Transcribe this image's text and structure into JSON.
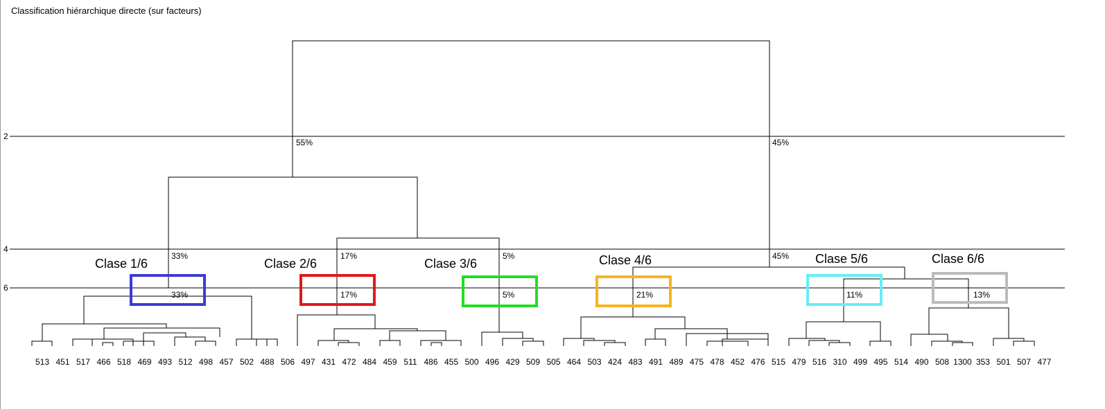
{
  "title": "Classification hiérarchique directe (sur facteurs)",
  "level_ticks": [
    "2",
    "4",
    "6"
  ],
  "top_split": {
    "left_pct": "55%",
    "right_pct": "45%"
  },
  "mid_pct": {
    "left_branch": "33%",
    "center_branch": "17%",
    "center_right": "5%",
    "right_branch": "45%"
  },
  "classes": [
    {
      "label": "Clase 1/6",
      "pct": "33%",
      "color": "#3b3bd6"
    },
    {
      "label": "Clase 2/6",
      "pct": "17%",
      "color": "#e01919"
    },
    {
      "label": "Clase 3/6",
      "pct": "5%",
      "color": "#22dd22"
    },
    {
      "label": "Clase 4/6",
      "pct": "21%",
      "color": "#f5b41e"
    },
    {
      "label": "Clase 5/6",
      "pct": "11%",
      "color": "#66eef5"
    },
    {
      "label": "Clase 6/6",
      "pct": "13%",
      "color": "#bbbbbb"
    }
  ],
  "leaves": [
    "513",
    "451",
    "517",
    "466",
    "518",
    "469",
    "493",
    "512",
    "498",
    "457",
    "502",
    "488",
    "506",
    "497",
    "431",
    "472",
    "484",
    "459",
    "511",
    "486",
    "455",
    "500",
    "496",
    "429",
    "509",
    "505",
    "464",
    "503",
    "424",
    "483",
    "491",
    "489",
    "475",
    "478",
    "452",
    "476",
    "515",
    "479",
    "516",
    "310",
    "499",
    "495",
    "514",
    "490",
    "508",
    "1300",
    "353",
    "501",
    "507",
    "477"
  ]
}
